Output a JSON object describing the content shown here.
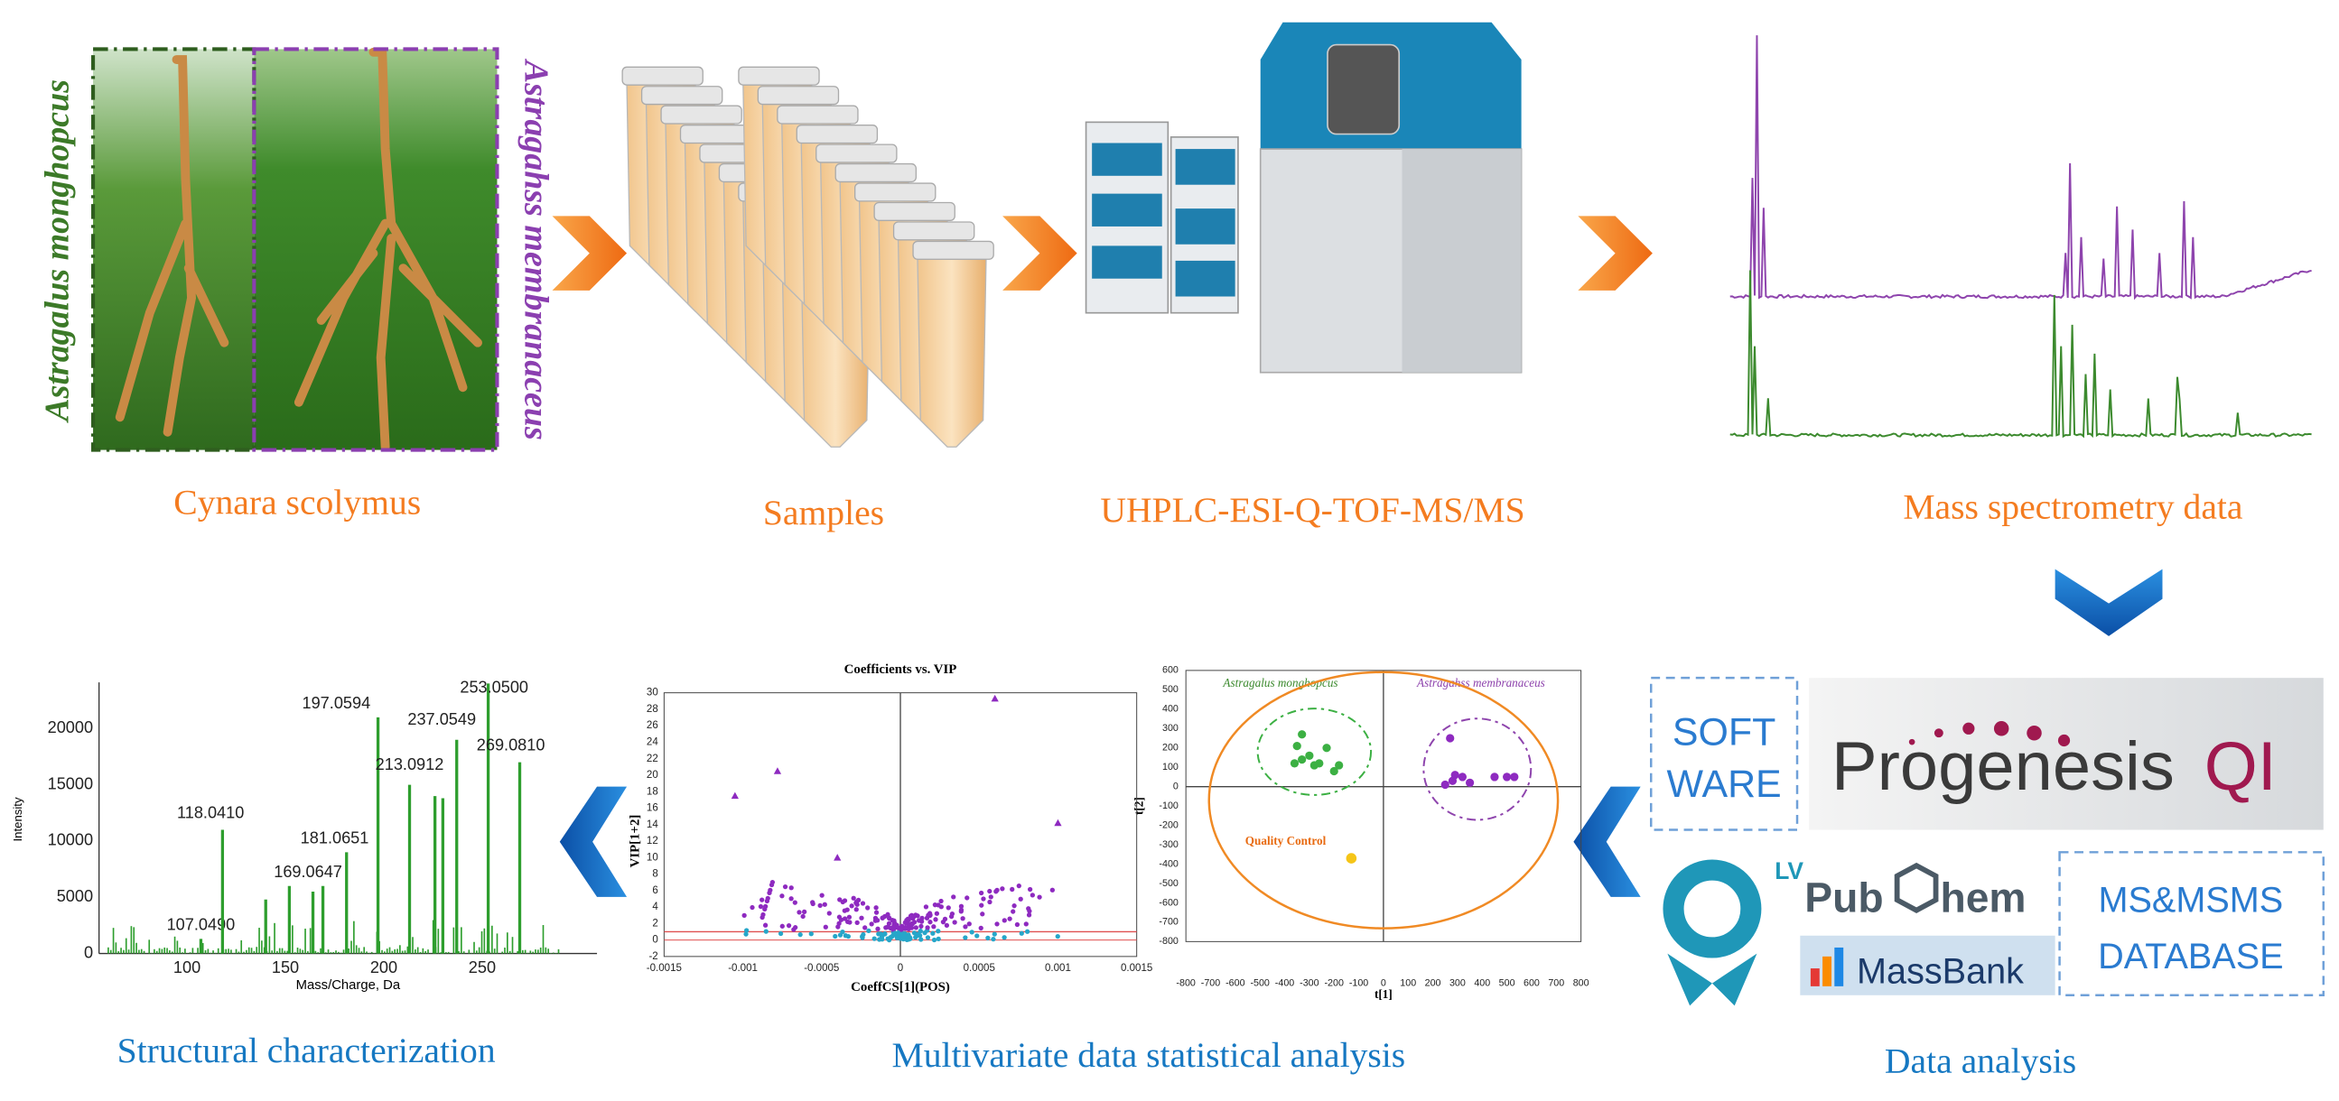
{
  "species": {
    "left": "Astragalus monghopcus",
    "right": "Astragahss membranaceus"
  },
  "stages": {
    "plant": "Cynara scolymus",
    "samples": "Samples",
    "instrument": "UHPLC-ESI-Q-TOF-MS/MS",
    "ms_data": "Mass spectrometry data",
    "data_analysis": "Data analysis",
    "multivariate": "Multivariate data statistical analysis",
    "structural": "Structural characterization"
  },
  "analysis": {
    "software": [
      "SOFT",
      "WARE"
    ],
    "progenesis": "Progenesis",
    "qi": "QI",
    "lv": "LV",
    "pubchem_left": "Pub",
    "pubchem_right": "hem",
    "massbank": "MassBank",
    "database": [
      "MS&MSMS",
      "DATABASE"
    ]
  },
  "score_plot": {
    "group_left": "Astragalus monghopcus",
    "group_right": "Astragahss membranaceus",
    "qc": "Quality Control",
    "x_label": "t[1]",
    "y_label": "t[2]",
    "x_ticks": [
      -800,
      -700,
      -600,
      -500,
      -400,
      -300,
      -200,
      -100,
      0,
      100,
      200,
      300,
      400,
      500,
      600,
      700,
      800
    ],
    "y_ticks": [
      600,
      500,
      400,
      300,
      200,
      100,
      0,
      -100,
      -200,
      -300,
      -400,
      -500,
      -600,
      -700,
      -800
    ]
  },
  "vip_plot": {
    "title": "Coefficients vs. VIP",
    "x_label": "CoeffCS[1](POS)",
    "y_label": "VIP[1+2]",
    "x_ticks": [
      -0.0015,
      -0.001,
      -0.0005,
      0,
      0.0005,
      0.001,
      0.0015
    ],
    "y_ticks": [
      30,
      28,
      26,
      24,
      22,
      20,
      18,
      16,
      14,
      12,
      10,
      8,
      6,
      4,
      2,
      0,
      -2
    ]
  },
  "spectrum": {
    "x_label": "Mass/Charge, Da",
    "y_label": "Intensity",
    "x_ticks": [
      100,
      150,
      200,
      250
    ],
    "y_ticks": [
      0,
      5000,
      10000,
      15000,
      20000
    ],
    "peak_labels": [
      "107.0490",
      "118.0410",
      "169.0647",
      "181.0651",
      "197.0594",
      "213.0912",
      "237.0549",
      "253.0500",
      "269.0810"
    ]
  }
}
